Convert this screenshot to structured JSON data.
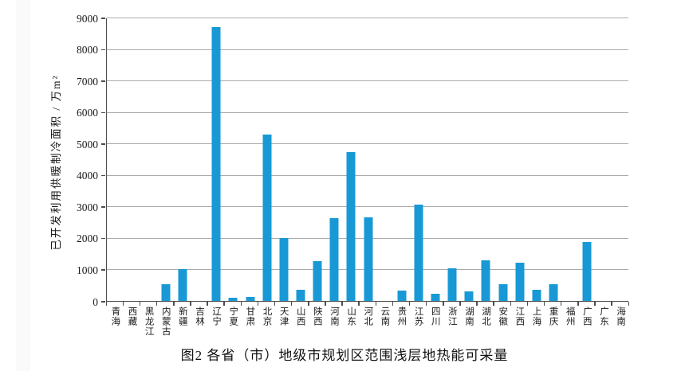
{
  "chart_data": {
    "type": "bar",
    "caption": "图2  各省（市）地级市规划区范围浅层地热能可采量",
    "ylabel": "已开发利用供暖制冷面积 / 万m²",
    "xlabel": "",
    "ylim": [
      0,
      9000
    ],
    "yticks": [
      0,
      1000,
      2000,
      3000,
      4000,
      5000,
      6000,
      7000,
      8000,
      9000
    ],
    "grid": true,
    "legend": "none",
    "bar_color": "#1899d6",
    "categories": [
      "青海",
      "西藏",
      "黑龙江",
      "内蒙古",
      "新疆",
      "吉林",
      "辽宁",
      "宁夏",
      "甘肃",
      "北京",
      "天津",
      "山西",
      "陕西",
      "河南",
      "山东",
      "河北",
      "云南",
      "贵州",
      "江苏",
      "四川",
      "浙江",
      "湖南",
      "湖北",
      "安徽",
      "江西",
      "上海",
      "重庆",
      "福州",
      "广西",
      "广东",
      "海南"
    ],
    "values": [
      0,
      0,
      0,
      540,
      1000,
      0,
      8700,
      100,
      130,
      5290,
      2010,
      360,
      1260,
      2620,
      4740,
      2650,
      0,
      340,
      3050,
      240,
      1040,
      300,
      1300,
      540,
      1210,
      360,
      520,
      0,
      1870,
      0,
      0
    ]
  }
}
